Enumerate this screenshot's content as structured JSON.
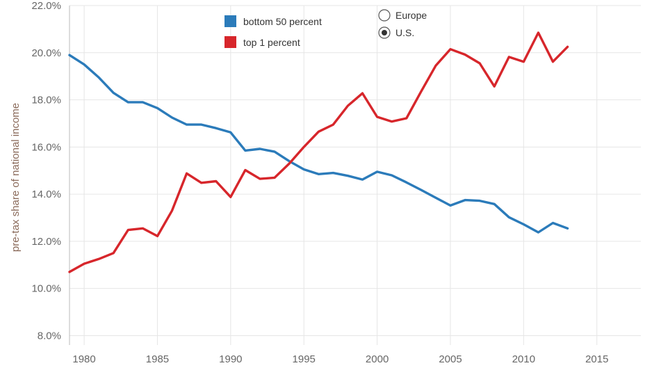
{
  "chart_data": {
    "type": "line",
    "ylabel": "pre-tax share of national income",
    "xlim": [
      1979,
      2018
    ],
    "ylim": [
      7.6,
      22.0
    ],
    "x_ticks": [
      1980,
      1985,
      1990,
      1995,
      2000,
      2005,
      2010,
      2015
    ],
    "y_ticks": [
      8.0,
      10.0,
      12.0,
      14.0,
      16.0,
      18.0,
      20.0,
      22.0
    ],
    "y_tick_labels": [
      "8.0%",
      "10.0%",
      "12.0%",
      "14.0%",
      "16.0%",
      "18.0%",
      "20.0%",
      "22.0%"
    ],
    "x": [
      1979,
      1980,
      1981,
      1982,
      1983,
      1984,
      1985,
      1986,
      1987,
      1988,
      1989,
      1990,
      1991,
      1992,
      1993,
      1994,
      1995,
      1996,
      1997,
      1998,
      1999,
      2000,
      2001,
      2002,
      2003,
      2004,
      2005,
      2006,
      2007,
      2008,
      2009,
      2010,
      2011,
      2012,
      2013,
      2014
    ],
    "series": [
      {
        "name": "bottom 50 percent",
        "color": "#2b7bba",
        "values": [
          19.9,
          19.5,
          18.95,
          18.3,
          17.9,
          17.9,
          17.65,
          17.25,
          16.95,
          16.95,
          16.8,
          16.62,
          15.85,
          15.92,
          15.8,
          15.4,
          15.05,
          14.85,
          14.9,
          14.78,
          14.62,
          14.95,
          14.8,
          14.5,
          14.18,
          13.85,
          13.52,
          13.75,
          13.72,
          13.58,
          13.02,
          12.72,
          12.38,
          12.78,
          12.55,
          null
        ]
      },
      {
        "name": "top 1 percent",
        "color": "#d7262b",
        "values": [
          10.7,
          11.05,
          11.25,
          11.5,
          12.48,
          12.55,
          12.22,
          13.3,
          14.88,
          14.48,
          14.55,
          13.88,
          15.02,
          14.65,
          14.7,
          15.3,
          16.0,
          16.65,
          16.95,
          17.75,
          18.28,
          17.28,
          17.08,
          17.22,
          18.35,
          19.45,
          20.15,
          19.92,
          19.55,
          18.57,
          19.82,
          19.62,
          20.85,
          19.62,
          20.25,
          null
        ]
      }
    ],
    "legend": {
      "placement": "top-center",
      "items": [
        {
          "label": "bottom 50 percent",
          "color": "#2b7bba"
        },
        {
          "label": "top 1 percent",
          "color": "#d7262b"
        }
      ]
    },
    "region_selector": {
      "options": [
        {
          "label": "Europe",
          "selected": false
        },
        {
          "label": "U.S.",
          "selected": true
        }
      ]
    },
    "grid": true
  }
}
